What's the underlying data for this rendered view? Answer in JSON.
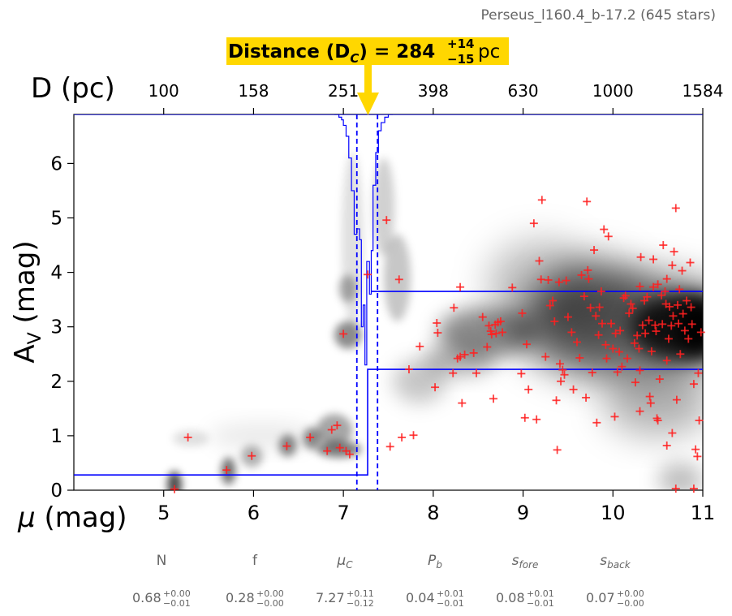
{
  "header": {
    "region_label": "Perseus_l160.4_b-17.2 (645 stars)"
  },
  "distance_banner": {
    "prefix": "Distance (D",
    "sub": "C",
    "suffix": ") = 284",
    "upper": "+14",
    "lower": "−15",
    "unit": " pc"
  },
  "chart_data": {
    "type": "scatter",
    "xlabel": "μ (mag)",
    "ylabel": "A",
    "ylabel_sub": "V",
    "ylabel_unit": " (mag)",
    "top_axis_label": "D (pc)",
    "xlim": [
      4.0,
      11.0
    ],
    "ylim": [
      0.0,
      6.9
    ],
    "x_ticks": [
      5,
      6,
      7,
      8,
      9,
      10,
      11
    ],
    "x_tick_labels": [
      "5",
      "6",
      "7",
      "8",
      "9",
      "10",
      "11"
    ],
    "y_ticks": [
      0,
      1,
      2,
      3,
      4,
      5,
      6
    ],
    "y_tick_labels": [
      "0",
      "1",
      "2",
      "3",
      "4",
      "5",
      "6"
    ],
    "top_ticks_mu": [
      5.0,
      6.0,
      7.0,
      8.0,
      9.0,
      10.0,
      11.0
    ],
    "top_tick_labels": [
      "100",
      "158",
      "251",
      "398",
      "630",
      "1000",
      "1584"
    ],
    "distance_modulus": 7.27,
    "distance_modulus_lo": 7.15,
    "distance_modulus_hi": 7.38,
    "foreground_extinction": 0.28,
    "background_extinction": 2.95,
    "background_band": [
      2.22,
      3.65
    ],
    "colors": {
      "model": "#0000ff",
      "points": "#ff2020",
      "banner": "#ffd700",
      "param_text": "#666666"
    },
    "stars": [
      [
        5.12,
        0.02
      ],
      [
        5.27,
        0.97
      ],
      [
        5.7,
        0.37
      ],
      [
        5.98,
        0.63
      ],
      [
        6.37,
        0.81
      ],
      [
        6.63,
        0.97
      ],
      [
        6.82,
        0.72
      ],
      [
        6.87,
        1.11
      ],
      [
        6.93,
        1.19
      ],
      [
        6.96,
        0.78
      ],
      [
        7.0,
        2.87
      ],
      [
        7.03,
        0.72
      ],
      [
        7.07,
        0.66
      ],
      [
        7.27,
        3.96
      ],
      [
        7.48,
        4.96
      ],
      [
        7.52,
        0.8
      ],
      [
        7.62,
        3.87
      ],
      [
        7.65,
        0.97
      ],
      [
        7.73,
        2.22
      ],
      [
        7.78,
        1.01
      ],
      [
        7.85,
        2.64
      ],
      [
        8.02,
        1.89
      ],
      [
        8.04,
        3.07
      ],
      [
        8.05,
        2.89
      ],
      [
        8.22,
        2.15
      ],
      [
        8.23,
        3.35
      ],
      [
        8.27,
        2.42
      ],
      [
        8.3,
        2.45
      ],
      [
        8.3,
        3.73
      ],
      [
        8.32,
        1.6
      ],
      [
        8.35,
        2.49
      ],
      [
        8.45,
        2.52
      ],
      [
        8.48,
        2.15
      ],
      [
        8.55,
        3.18
      ],
      [
        8.6,
        2.63
      ],
      [
        8.62,
        3.02
      ],
      [
        8.64,
        2.92
      ],
      [
        8.65,
        2.86
      ],
      [
        8.67,
        1.68
      ],
      [
        8.69,
        3.04
      ],
      [
        8.7,
        2.88
      ],
      [
        8.72,
        3.08
      ],
      [
        8.75,
        3.1
      ],
      [
        8.77,
        2.9
      ],
      [
        8.88,
        3.72
      ],
      [
        8.98,
        2.14
      ],
      [
        8.99,
        3.25
      ],
      [
        9.02,
        1.33
      ],
      [
        9.04,
        2.68
      ],
      [
        9.06,
        1.85
      ],
      [
        9.12,
        4.9
      ],
      [
        9.15,
        1.3
      ],
      [
        9.18,
        4.21
      ],
      [
        9.2,
        3.87
      ],
      [
        9.21,
        5.33
      ],
      [
        9.25,
        2.45
      ],
      [
        9.28,
        3.86
      ],
      [
        9.3,
        3.39
      ],
      [
        9.33,
        3.48
      ],
      [
        9.35,
        3.1
      ],
      [
        9.37,
        1.65
      ],
      [
        9.38,
        0.74
      ],
      [
        9.4,
        3.82
      ],
      [
        9.41,
        2.32
      ],
      [
        9.42,
        2.0
      ],
      [
        9.44,
        2.21
      ],
      [
        9.46,
        2.12
      ],
      [
        9.48,
        3.85
      ],
      [
        9.5,
        3.18
      ],
      [
        9.54,
        2.9
      ],
      [
        9.56,
        1.85
      ],
      [
        9.6,
        2.72
      ],
      [
        9.63,
        2.43
      ],
      [
        9.65,
        3.95
      ],
      [
        9.68,
        3.56
      ],
      [
        9.7,
        1.7
      ],
      [
        9.71,
        5.3
      ],
      [
        9.72,
        4.04
      ],
      [
        9.73,
        3.88
      ],
      [
        9.75,
        3.35
      ],
      [
        9.77,
        2.16
      ],
      [
        9.79,
        4.41
      ],
      [
        9.81,
        3.2
      ],
      [
        9.82,
        1.24
      ],
      [
        9.84,
        2.85
      ],
      [
        9.85,
        3.36
      ],
      [
        9.87,
        3.65
      ],
      [
        9.88,
        3.06
      ],
      [
        9.9,
        4.79
      ],
      [
        9.92,
        2.67
      ],
      [
        9.93,
        2.42
      ],
      [
        9.95,
        4.66
      ],
      [
        9.98,
        3.06
      ],
      [
        10.0,
        2.6
      ],
      [
        10.02,
        1.35
      ],
      [
        10.03,
        2.88
      ],
      [
        10.05,
        2.17
      ],
      [
        10.07,
        2.54
      ],
      [
        10.08,
        2.93
      ],
      [
        10.1,
        2.27
      ],
      [
        10.12,
        3.53
      ],
      [
        10.14,
        3.57
      ],
      [
        10.16,
        2.42
      ],
      [
        10.18,
        3.25
      ],
      [
        10.2,
        3.42
      ],
      [
        10.22,
        3.34
      ],
      [
        10.24,
        2.7
      ],
      [
        10.25,
        1.98
      ],
      [
        10.27,
        2.84
      ],
      [
        10.29,
        2.6
      ],
      [
        10.3,
        3.74
      ],
      [
        10.31,
        4.28
      ],
      [
        10.33,
        3.03
      ],
      [
        10.35,
        3.48
      ],
      [
        10.36,
        2.88
      ],
      [
        10.38,
        3.55
      ],
      [
        10.4,
        3.12
      ],
      [
        10.41,
        1.72
      ],
      [
        10.43,
        2.55
      ],
      [
        10.45,
        3.73
      ],
      [
        10.47,
        3.03
      ],
      [
        10.48,
        2.92
      ],
      [
        10.49,
        1.32
      ],
      [
        10.5,
        3.78
      ],
      [
        10.52,
        2.04
      ],
      [
        10.54,
        3.58
      ],
      [
        10.55,
        3.05
      ],
      [
        10.56,
        4.5
      ],
      [
        10.58,
        3.65
      ],
      [
        10.59,
        3.42
      ],
      [
        10.6,
        2.38
      ],
      [
        10.62,
        2.78
      ],
      [
        10.63,
        3.37
      ],
      [
        10.65,
        3.02
      ],
      [
        10.66,
        4.13
      ],
      [
        10.67,
        3.2
      ],
      [
        10.68,
        4.38
      ],
      [
        10.7,
        5.18
      ],
      [
        10.71,
        1.66
      ],
      [
        10.72,
        3.4
      ],
      [
        10.73,
        3.06
      ],
      [
        10.74,
        3.69
      ],
      [
        10.75,
        2.5
      ],
      [
        10.77,
        4.03
      ],
      [
        10.78,
        3.24
      ],
      [
        10.8,
        2.93
      ],
      [
        10.82,
        3.48
      ],
      [
        10.84,
        2.78
      ],
      [
        10.86,
        4.18
      ],
      [
        10.87,
        3.36
      ],
      [
        10.88,
        3.05
      ],
      [
        10.9,
        1.95
      ],
      [
        10.92,
        0.75
      ],
      [
        10.94,
        0.62
      ],
      [
        10.96,
        1.28
      ],
      [
        10.98,
        2.9
      ],
      [
        10.3,
        1.45
      ],
      [
        10.42,
        1.6
      ],
      [
        10.5,
        1.28
      ],
      [
        10.6,
        0.82
      ],
      [
        10.66,
        1.05
      ],
      [
        10.7,
        0.03
      ],
      [
        10.9,
        0.03
      ],
      [
        10.95,
        2.15
      ],
      [
        10.6,
        3.88
      ],
      [
        10.45,
        4.24
      ],
      [
        10.3,
        2.2
      ]
    ]
  },
  "params": [
    {
      "name": "N",
      "italic": false,
      "sub": "",
      "value": "0.68",
      "upper": "+0.00",
      "lower": "−0.01"
    },
    {
      "name": "f",
      "italic": false,
      "sub": "",
      "value": "0.28",
      "upper": "+0.00",
      "lower": "−0.00"
    },
    {
      "name": "μ",
      "italic": true,
      "sub": "C",
      "value": "7.27",
      "upper": "+0.11",
      "lower": "−0.12"
    },
    {
      "name": "P",
      "italic": true,
      "sub": "b",
      "value": "0.04",
      "upper": "+0.01",
      "lower": "−0.01"
    },
    {
      "name": "s",
      "italic": true,
      "sub": "fore",
      "value": "0.08",
      "upper": "+0.01",
      "lower": "−0.01"
    },
    {
      "name": "s",
      "italic": true,
      "sub": "back",
      "value": "0.07",
      "upper": "+0.00",
      "lower": "−0.00"
    }
  ]
}
